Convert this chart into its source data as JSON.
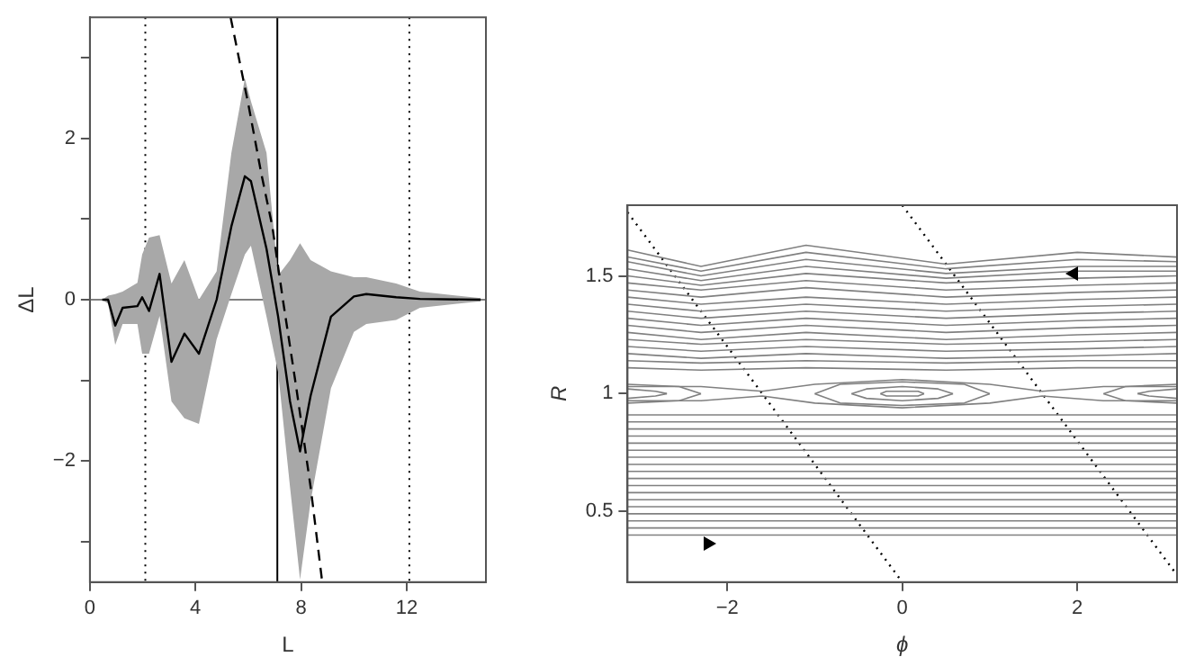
{
  "chart_data": [
    {
      "type": "line",
      "xlabel": "L",
      "ylabel": "ΔL",
      "xlim": [
        0,
        15
      ],
      "ylim": [
        -3.5,
        3.5
      ],
      "xticks": [
        0,
        4,
        8,
        12
      ],
      "yticks": [
        {
          "value": -3,
          "label": null
        },
        {
          "value": -2,
          "label": "−2"
        },
        {
          "value": -1,
          "label": null
        },
        0,
        {
          "value": 1,
          "label": null
        },
        2,
        {
          "value": 3,
          "label": null
        }
      ],
      "series": [
        {
          "color": "#000000",
          "x": [
            0.47,
            0.69,
            0.96,
            1.24,
            1.8,
            1.98,
            2.24,
            2.64,
            3.09,
            3.58,
            4.13,
            4.8,
            5.36,
            5.87,
            6.1,
            6.69,
            7.13,
            7.58,
            7.96,
            8.36,
            9.13,
            10.0,
            10.47,
            11.6,
            12.5,
            14.8
          ],
          "values": [
            0,
            0,
            -0.32,
            -0.1,
            -0.08,
            0.03,
            -0.14,
            0.32,
            -0.77,
            -0.42,
            -0.67,
            0,
            0.91,
            1.53,
            1.47,
            0.63,
            -0.21,
            -1.26,
            -1.88,
            -1.19,
            -0.21,
            0.04,
            0.07,
            0.03,
            0.01,
            0
          ],
          "upper": [
            0,
            0.05,
            0.07,
            0.1,
            0.21,
            0.56,
            0.77,
            0.8,
            0.2,
            0.49,
            0,
            0.35,
            1.82,
            2.74,
            2.46,
            1.82,
            0.3,
            0.49,
            0.7,
            0.49,
            0.35,
            0.28,
            0.28,
            0.2,
            0.1,
            0.02
          ],
          "lower": [
            0,
            -0.05,
            -0.56,
            -0.3,
            -0.3,
            -0.67,
            -0.67,
            -0.2,
            -1.26,
            -1.47,
            -1.54,
            -0.49,
            0.07,
            0.56,
            0.67,
            -0.21,
            -0.9,
            -2.32,
            -3.47,
            -2.5,
            -1.1,
            -0.4,
            -0.3,
            -0.25,
            -0.1,
            -0.02
          ]
        },
        {
          "color": "#000000",
          "line_style": "dashed",
          "x": [
            5.33,
            6.02,
            6.5,
            6.91,
            7.31,
            7.8,
            8.36,
            8.8
          ],
          "values": [
            3.5,
            2.39,
            1.55,
            0.91,
            0,
            -1.05,
            -2.32,
            -3.5
          ]
        }
      ],
      "ref_lines": [
        {
          "axis": "x",
          "value": 2.1,
          "line_style": "dotted",
          "color": "#000000"
        },
        {
          "axis": "x",
          "value": 7.1,
          "line_style": "solid",
          "color": "#000000"
        },
        {
          "axis": "x",
          "value": 12.1,
          "line_style": "dotted",
          "color": "#000000"
        },
        {
          "axis": "y",
          "value": 0,
          "line_style": "solid",
          "color": "#808080"
        }
      ]
    },
    {
      "type": "line",
      "xlabel": "ϕ",
      "ylabel": "R",
      "xlim": [
        -3.14,
        3.14
      ],
      "ylim": [
        0.2,
        1.8
      ],
      "xticks": [
        {
          "value": -2,
          "label": "−2"
        },
        0,
        2
      ],
      "yticks": [
        0.5,
        1,
        1.5
      ],
      "series": [
        {
          "color": "#808080",
          "x": [
            -3.14,
            -2.3,
            -1.1,
            0.5,
            2.0,
            3.14
          ],
          "values": [
            1.61,
            1.54,
            1.63,
            1.55,
            1.6,
            1.58
          ]
        },
        {
          "color": "#808080",
          "x": [
            -3.14,
            -2.3,
            -1.1,
            0.5,
            2.0,
            3.14
          ],
          "values": [
            1.58,
            1.52,
            1.6,
            1.53,
            1.57,
            1.56
          ]
        },
        {
          "color": "#808080",
          "x": [
            -3.14,
            -2.3,
            -1.1,
            0.5,
            2.0,
            3.14
          ],
          "values": [
            1.56,
            1.5,
            1.57,
            1.51,
            1.54,
            1.54
          ]
        },
        {
          "color": "#808080",
          "x": [
            -3.14,
            -2.3,
            -1.1,
            0.5,
            2.0,
            3.14
          ],
          "values": [
            1.53,
            1.48,
            1.54,
            1.49,
            1.52,
            1.52
          ]
        },
        {
          "color": "#808080",
          "x": [
            -3.14,
            -2.3,
            -1.1,
            0.5,
            2.0,
            3.14
          ],
          "values": [
            1.5,
            1.46,
            1.51,
            1.47,
            1.49,
            1.5
          ]
        },
        {
          "color": "#808080",
          "x": [
            -3.14,
            -2.3,
            -1.1,
            0.5,
            2.0,
            3.14
          ],
          "values": [
            1.47,
            1.44,
            1.48,
            1.44,
            1.46,
            1.47
          ]
        },
        {
          "color": "#808080",
          "x": [
            -3.14,
            -2.3,
            -1.1,
            0.5,
            2.0,
            3.14
          ],
          "values": [
            1.44,
            1.41,
            1.45,
            1.41,
            1.43,
            1.44
          ]
        },
        {
          "color": "#808080",
          "x": [
            -3.14,
            -2.3,
            -1.1,
            0.5,
            2.0,
            3.14
          ],
          "values": [
            1.41,
            1.38,
            1.41,
            1.38,
            1.4,
            1.41
          ]
        },
        {
          "color": "#808080",
          "x": [
            -3.14,
            -2.3,
            -1.1,
            0.5,
            2.0,
            3.14
          ],
          "values": [
            1.38,
            1.35,
            1.38,
            1.35,
            1.37,
            1.38
          ]
        },
        {
          "color": "#808080",
          "x": [
            -3.14,
            -2.3,
            -1.1,
            0.5,
            2.0,
            3.14
          ],
          "values": [
            1.35,
            1.32,
            1.35,
            1.32,
            1.34,
            1.35
          ]
        },
        {
          "color": "#808080",
          "x": [
            -3.14,
            -2.3,
            -1.1,
            0.5,
            2.0,
            3.14
          ],
          "values": [
            1.32,
            1.29,
            1.32,
            1.29,
            1.31,
            1.32
          ]
        },
        {
          "color": "#808080",
          "x": [
            -3.14,
            -2.3,
            -1.1,
            0.5,
            2.0,
            3.14
          ],
          "values": [
            1.29,
            1.26,
            1.29,
            1.26,
            1.28,
            1.29
          ]
        },
        {
          "color": "#808080",
          "x": [
            -3.14,
            -2.3,
            -1.1,
            0.5,
            2.0,
            3.14
          ],
          "values": [
            1.26,
            1.23,
            1.26,
            1.23,
            1.25,
            1.26
          ]
        },
        {
          "color": "#808080",
          "x": [
            -3.14,
            -2.3,
            -1.1,
            0.5,
            2.0,
            3.14
          ],
          "values": [
            1.23,
            1.21,
            1.23,
            1.21,
            1.22,
            1.23
          ]
        },
        {
          "color": "#808080",
          "x": [
            -3.14,
            -2.3,
            -1.1,
            0.5,
            2.0,
            3.14
          ],
          "values": [
            1.2,
            1.18,
            1.2,
            1.18,
            1.19,
            1.2
          ]
        },
        {
          "color": "#808080",
          "x": [
            -3.14,
            -2.3,
            -1.1,
            0.5,
            2.0,
            3.14
          ],
          "values": [
            1.17,
            1.15,
            1.17,
            1.15,
            1.16,
            1.17
          ]
        },
        {
          "color": "#808080",
          "x": [
            -3.14,
            -2.3,
            -1.1,
            0.5,
            2.0,
            3.14
          ],
          "values": [
            1.14,
            1.13,
            1.14,
            1.13,
            1.14,
            1.14
          ]
        },
        {
          "color": "#808080",
          "x": [
            -3.14,
            -2.3,
            -1.1,
            0.5,
            2.0,
            3.14
          ],
          "values": [
            1.11,
            1.1,
            1.11,
            1.1,
            1.11,
            1.11
          ]
        },
        {
          "color": "#808080",
          "x": [
            -3.14,
            -2.3,
            -1.6,
            -1.0,
            0,
            1.0,
            1.6,
            2.3,
            3.14
          ],
          "values": [
            1.03,
            1.03,
            1.01,
            1.04,
            1.06,
            1.04,
            1.01,
            1.03,
            1.03
          ]
        },
        {
          "color": "#808080",
          "x": [
            -3.14,
            -2.3,
            -1.6,
            -1.0,
            0,
            1.0,
            1.6,
            2.3,
            3.14
          ],
          "values": [
            0.97,
            0.97,
            0.99,
            0.96,
            0.94,
            0.96,
            0.99,
            0.97,
            0.97
          ]
        },
        {
          "color": "#808080",
          "x": [
            -0.25,
            -0.18,
            0,
            0.18,
            0.25
          ],
          "values": [
            1,
            1.01,
            1.01,
            1.01,
            1
          ]
        },
        {
          "color": "#808080",
          "x": [
            -0.25,
            -0.18,
            0,
            0.18,
            0.25
          ],
          "values": [
            1,
            0.99,
            0.99,
            0.99,
            1
          ]
        },
        {
          "color": "#808080",
          "x": [
            -0.58,
            -0.41,
            0,
            0.41,
            0.58
          ],
          "values": [
            1,
            1.02,
            1.03,
            1.02,
            1
          ]
        },
        {
          "color": "#808080",
          "x": [
            -0.58,
            -0.41,
            0,
            0.41,
            0.58
          ],
          "values": [
            1,
            0.98,
            0.97,
            0.98,
            1
          ]
        },
        {
          "color": "#808080",
          "x": [
            -1,
            -0.71,
            0,
            0.71,
            1
          ],
          "values": [
            1,
            1.04,
            1.05,
            1.04,
            1
          ]
        },
        {
          "color": "#808080",
          "x": [
            -1,
            -0.71,
            0,
            0.71,
            1
          ],
          "values": [
            1,
            0.96,
            0.95,
            0.96,
            1
          ]
        },
        {
          "color": "#808080",
          "x": [
            -3.14,
            -2.82,
            -2.69
          ],
          "values": [
            1.02,
            1.01,
            1
          ]
        },
        {
          "color": "#808080",
          "x": [
            -3.14,
            -2.82,
            -2.69
          ],
          "values": [
            0.98,
            0.99,
            1
          ]
        },
        {
          "color": "#808080",
          "x": [
            -3.14,
            -2.55,
            -2.3
          ],
          "values": [
            1.04,
            1.03,
            1
          ]
        },
        {
          "color": "#808080",
          "x": [
            -3.14,
            -2.55,
            -2.3
          ],
          "values": [
            0.96,
            0.97,
            1
          ]
        },
        {
          "color": "#808080",
          "x": [
            2.69,
            2.82,
            3.14
          ],
          "values": [
            1,
            1.01,
            1.02
          ]
        },
        {
          "color": "#808080",
          "x": [
            2.69,
            2.82,
            3.14
          ],
          "values": [
            1,
            0.99,
            0.98
          ]
        },
        {
          "color": "#808080",
          "x": [
            2.3,
            2.55,
            3.14
          ],
          "values": [
            1,
            1.03,
            1.04
          ]
        },
        {
          "color": "#808080",
          "x": [
            2.3,
            2.55,
            3.14
          ],
          "values": [
            1,
            0.97,
            0.96
          ]
        },
        {
          "color": "#808080",
          "x": [
            -3.14,
            3.14
          ],
          "values": [
            0.91,
            0.91
          ]
        },
        {
          "color": "#808080",
          "x": [
            -3.14,
            3.14
          ],
          "values": [
            0.88,
            0.88
          ]
        },
        {
          "color": "#808080",
          "x": [
            -3.14,
            3.14
          ],
          "values": [
            0.85,
            0.85
          ]
        },
        {
          "color": "#808080",
          "x": [
            -3.14,
            3.14
          ],
          "values": [
            0.82,
            0.82
          ]
        },
        {
          "color": "#808080",
          "x": [
            -3.14,
            3.14
          ],
          "values": [
            0.79,
            0.79
          ]
        },
        {
          "color": "#808080",
          "x": [
            -3.14,
            3.14
          ],
          "values": [
            0.76,
            0.76
          ]
        },
        {
          "color": "#808080",
          "x": [
            -3.14,
            3.14
          ],
          "values": [
            0.73,
            0.73
          ]
        },
        {
          "color": "#808080",
          "x": [
            -3.14,
            3.14
          ],
          "values": [
            0.7,
            0.7
          ]
        },
        {
          "color": "#808080",
          "x": [
            -3.14,
            3.14
          ],
          "values": [
            0.67,
            0.67
          ]
        },
        {
          "color": "#808080",
          "x": [
            -3.14,
            3.14
          ],
          "values": [
            0.64,
            0.64
          ]
        },
        {
          "color": "#808080",
          "x": [
            -3.14,
            3.14
          ],
          "values": [
            0.61,
            0.61
          ]
        },
        {
          "color": "#808080",
          "x": [
            -3.14,
            3.14
          ],
          "values": [
            0.58,
            0.58
          ]
        },
        {
          "color": "#808080",
          "x": [
            -3.14,
            3.14
          ],
          "values": [
            0.55,
            0.55
          ]
        },
        {
          "color": "#808080",
          "x": [
            -3.14,
            3.14
          ],
          "values": [
            0.52,
            0.52
          ]
        },
        {
          "color": "#808080",
          "x": [
            -3.14,
            3.14
          ],
          "values": [
            0.49,
            0.49
          ]
        },
        {
          "color": "#808080",
          "x": [
            -3.14,
            3.14
          ],
          "values": [
            0.46,
            0.46
          ]
        },
        {
          "color": "#808080",
          "x": [
            -3.14,
            3.14
          ],
          "values": [
            0.43,
            0.43
          ]
        },
        {
          "color": "#808080",
          "x": [
            -3.14,
            3.14
          ],
          "values": [
            0.4,
            0.4
          ]
        },
        {
          "color": "#000000",
          "line_style": "dotted",
          "x": [
            -3.14,
            0
          ],
          "values": [
            1.77,
            0.2
          ]
        },
        {
          "color": "#000000",
          "line_style": "dotted",
          "x": [
            0,
            3.14
          ],
          "values": [
            1.8,
            0.23
          ]
        }
      ]
    }
  ]
}
